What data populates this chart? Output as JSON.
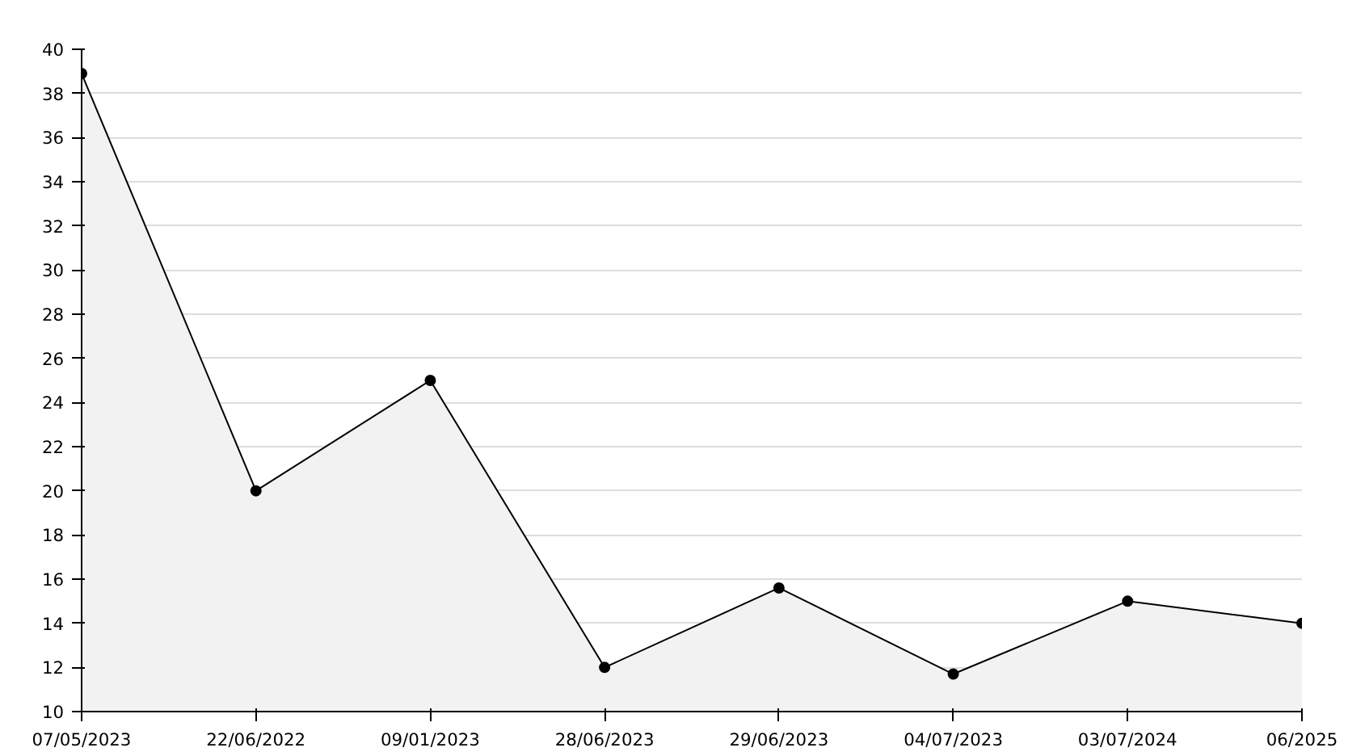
{
  "chart_data": {
    "type": "area",
    "categories": [
      "07/05/2023",
      "22/06/2022",
      "09/01/2023",
      "28/06/2023",
      "29/06/2023",
      "04/07/2023",
      "03/07/2024",
      "06/2025"
    ],
    "series": [
      {
        "color": "#000000",
        "values": [
          38.9,
          20,
          25,
          12,
          15.6,
          11.7,
          15,
          14
        ]
      }
    ],
    "ylim": [
      10,
      40
    ],
    "yticks": [
      10,
      12,
      14,
      16,
      18,
      20,
      22,
      24,
      26,
      28,
      30,
      32,
      34,
      36,
      38,
      40
    ],
    "grid": "y",
    "marker": "circle",
    "line_style": "solid"
  }
}
